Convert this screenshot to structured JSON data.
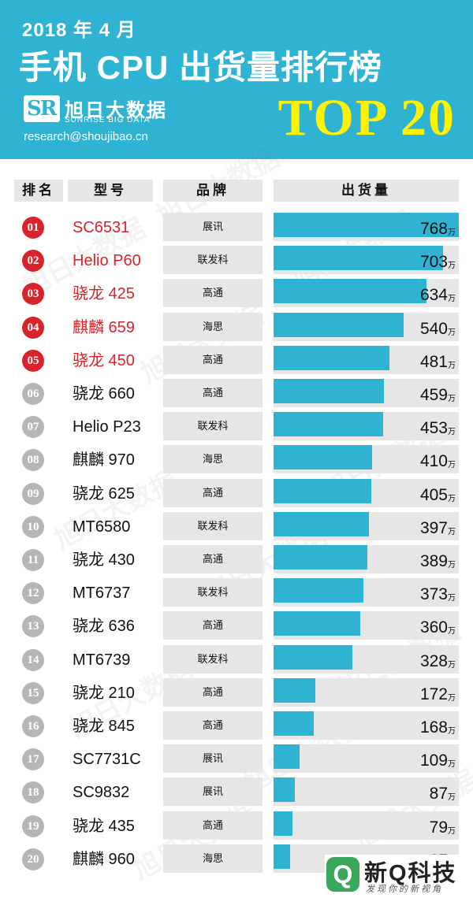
{
  "header": {
    "date_title": "2018 年 4 月",
    "main_title": "手机 CPU 出货量排行榜",
    "logo_mark": "SR",
    "brand_name": "旭日大数据",
    "brand_en": "SUNRISE BIG DATA",
    "email": "research@shoujibao.cn",
    "top_label": "TOP 20"
  },
  "columns": {
    "rank": "排名",
    "model": "型号",
    "brand": "品牌",
    "shipment": "出货量"
  },
  "unit": "万",
  "watermark": "旭日大数据",
  "footer": {
    "icon_letter": "Q",
    "name": "新Q科技",
    "sub": "发现你的新视角"
  },
  "colors": {
    "header": "#2fb3d2",
    "bar": "#2fb3d2",
    "top5": "#d9232b",
    "rank_gray": "#b6b6b6",
    "title_yellow": "#fff200",
    "cell_gray": "#e6e6e6"
  },
  "chart_data": {
    "type": "bar",
    "title": "手机 CPU 出货量排行榜",
    "categories": [
      "SC6531",
      "Helio P60",
      "骁龙 425",
      "麒麟 659",
      "骁龙 450",
      "骁龙 660",
      "Helio P23",
      "麒麟 970",
      "骁龙 625",
      "MT6580",
      "骁龙 430",
      "MT6737",
      "骁龙 636",
      "MT6739",
      "骁龙 210",
      "骁龙 845",
      "SC7731C",
      "SC9832",
      "骁龙 435",
      "麒麟 960"
    ],
    "ranks": [
      "01",
      "02",
      "03",
      "04",
      "05",
      "06",
      "07",
      "08",
      "09",
      "10",
      "11",
      "12",
      "13",
      "14",
      "15",
      "16",
      "17",
      "18",
      "19",
      "20"
    ],
    "brands": [
      "展讯",
      "联发科",
      "高通",
      "海思",
      "高通",
      "高通",
      "联发科",
      "海思",
      "高通",
      "联发科",
      "高通",
      "联发科",
      "高通",
      "联发科",
      "高通",
      "高通",
      "展讯",
      "展讯",
      "高通",
      "海思"
    ],
    "values": [
      768,
      703,
      634,
      540,
      481,
      459,
      453,
      410,
      405,
      397,
      389,
      373,
      360,
      328,
      172,
      168,
      109,
      87,
      79,
      67
    ],
    "xlim": [
      0,
      768
    ]
  }
}
